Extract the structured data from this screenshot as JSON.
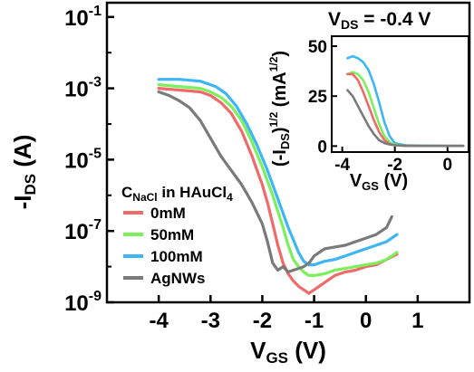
{
  "chart_data": [
    {
      "type": "line",
      "title": "",
      "xlabel_main": "V",
      "xlabel_sub": "GS",
      "xlabel_unit": " (V)",
      "ylabel_main": "-I",
      "ylabel_sub": "DS",
      "ylabel_unit": " (A)",
      "y_scale": "log",
      "xlim": [
        -5,
        2
      ],
      "ylim_exponent": [
        -9,
        -0.6
      ],
      "x_ticks": [
        -4,
        -3,
        -2,
        -1,
        0,
        1
      ],
      "x_tick_labels": [
        "-4",
        "-3",
        "-2",
        "-1",
        "0",
        "1"
      ],
      "y_ticks": [
        -9,
        -7,
        -5,
        -3,
        -1
      ],
      "y_tick_labels": [
        "10-9",
        "10-7",
        "10-5",
        "10-3",
        "10-1"
      ],
      "legend_title_main": "C",
      "legend_title_sub": "NaCl",
      "legend_title_rest": " in HAuCl",
      "legend_title_sub2": "4",
      "legend_position": "bottom-left",
      "series": [
        {
          "name": "0mM",
          "color": "#f06a6a",
          "x": [
            -4,
            -3.6,
            -3.2,
            -3.0,
            -2.8,
            -2.6,
            -2.4,
            -2.2,
            -2.0,
            -1.9,
            -1.8,
            -1.7,
            -1.6,
            -1.5,
            -1.4,
            -1.3,
            -1.2,
            -1.1,
            -1.0,
            -0.8,
            -0.6,
            -0.4,
            -0.2,
            0,
            0.2,
            0.4,
            0.6
          ],
          "log_y": [
            -3.0,
            -3.05,
            -3.1,
            -3.2,
            -3.4,
            -3.7,
            -4.2,
            -4.9,
            -5.7,
            -6.2,
            -6.8,
            -7.4,
            -7.9,
            -8.2,
            -8.4,
            -8.55,
            -8.65,
            -8.75,
            -8.65,
            -8.45,
            -8.25,
            -8.15,
            -8.1,
            -8.0,
            -7.95,
            -7.8,
            -7.65
          ]
        },
        {
          "name": "50mM",
          "color": "#7bef5c",
          "x": [
            -4,
            -3.6,
            -3.2,
            -3.0,
            -2.8,
            -2.6,
            -2.4,
            -2.2,
            -2.0,
            -1.8,
            -1.6,
            -1.5,
            -1.4,
            -1.3,
            -1.2,
            -1.1,
            -1.0,
            -0.8,
            -0.6,
            -0.4,
            -0.2,
            0,
            0.2,
            0.4,
            0.6
          ],
          "log_y": [
            -2.9,
            -2.95,
            -3.0,
            -3.1,
            -3.25,
            -3.5,
            -3.9,
            -4.5,
            -5.2,
            -6.0,
            -6.9,
            -7.4,
            -7.8,
            -8.0,
            -8.15,
            -8.25,
            -8.25,
            -8.2,
            -8.1,
            -8.05,
            -8.0,
            -7.95,
            -7.9,
            -7.8,
            -7.6
          ]
        },
        {
          "name": "100mM",
          "color": "#3eb6f5",
          "x": [
            -4,
            -3.6,
            -3.2,
            -2.9,
            -2.7,
            -2.5,
            -2.3,
            -2.1,
            -1.9,
            -1.7,
            -1.5,
            -1.3,
            -1.2,
            -1.1,
            -1.0,
            -0.8,
            -0.6,
            -0.4,
            -0.2,
            0,
            0.2,
            0.4,
            0.6
          ],
          "log_y": [
            -2.75,
            -2.75,
            -2.8,
            -2.95,
            -3.15,
            -3.5,
            -4.0,
            -4.6,
            -5.3,
            -6.1,
            -6.9,
            -7.6,
            -7.85,
            -7.95,
            -7.95,
            -7.85,
            -7.8,
            -7.7,
            -7.6,
            -7.5,
            -7.4,
            -7.3,
            -7.1
          ]
        },
        {
          "name": "AgNWs",
          "color": "#7a7a7a",
          "x": [
            -4,
            -3.8,
            -3.6,
            -3.4,
            -3.2,
            -3.0,
            -2.8,
            -2.6,
            -2.4,
            -2.2,
            -2.0,
            -1.9,
            -1.8,
            -1.7,
            -1.6,
            -1.5,
            -1.4,
            -1.3,
            -1.2,
            -1.1,
            -1.0,
            -0.8,
            -0.6,
            -0.4,
            -0.2,
            0,
            0.2,
            0.4,
            0.5
          ],
          "log_y": [
            -3.1,
            -3.2,
            -3.35,
            -3.55,
            -3.9,
            -4.4,
            -4.9,
            -5.3,
            -5.7,
            -6.2,
            -6.8,
            -7.3,
            -7.9,
            -8.1,
            -8.0,
            -8.15,
            -8.1,
            -8.05,
            -8.0,
            -7.9,
            -7.7,
            -7.5,
            -7.45,
            -7.4,
            -7.3,
            -7.2,
            -7.1,
            -6.9,
            -6.6
          ]
        }
      ]
    },
    {
      "type": "line",
      "title_main": "V",
      "title_sub": "DS",
      "title_rest": " = -0.4 V",
      "xlabel_main": "V",
      "xlabel_sub": "GS",
      "xlabel_unit": " (V)",
      "ylabel_text": "(-I",
      "ylabel_sub": "DS",
      "ylabel_mid": ")",
      "ylabel_sup": "1/2",
      "ylabel_unit": "  (mA",
      "ylabel_unit_sup": "1/2",
      "ylabel_close": ")",
      "xlim": [
        -4.4,
        0.8
      ],
      "ylim": [
        -3,
        55
      ],
      "x_ticks": [
        -4,
        -2,
        0
      ],
      "x_tick_labels": [
        "-4",
        "-2",
        "0"
      ],
      "y_ticks": [
        0,
        25,
        50
      ],
      "y_tick_labels": [
        "0",
        "25",
        "50"
      ],
      "series": [
        {
          "name": "100mM",
          "color": "#3eb6f5",
          "x": [
            -3.8,
            -3.6,
            -3.4,
            -3.2,
            -3.0,
            -2.8,
            -2.6,
            -2.4,
            -2.2,
            -2.0,
            -1.6,
            -1.0,
            0,
            0.6
          ],
          "y": [
            44,
            45,
            44,
            42,
            38,
            31,
            22,
            12,
            5,
            1.5,
            0.4,
            0.2,
            0.1,
            0.1
          ]
        },
        {
          "name": "50mM",
          "color": "#7bef5c",
          "x": [
            -3.8,
            -3.6,
            -3.4,
            -3.2,
            -3.0,
            -2.8,
            -2.6,
            -2.4,
            -2.2,
            -2.0,
            -1.6,
            -1.0,
            0,
            0.6
          ],
          "y": [
            36,
            37,
            36,
            33,
            27,
            19,
            11,
            5,
            2,
            0.7,
            0.2,
            0.1,
            0.1,
            0.1
          ]
        },
        {
          "name": "0mM",
          "color": "#f06a6a",
          "x": [
            -3.8,
            -3.6,
            -3.4,
            -3.2,
            -3.0,
            -2.8,
            -2.6,
            -2.4,
            -2.2,
            -2.0,
            -1.6,
            -1.0,
            0,
            0.6
          ],
          "y": [
            36,
            36,
            33,
            27,
            20,
            13,
            7,
            3,
            1,
            0.4,
            0.1,
            0.1,
            0.1,
            0.1
          ]
        },
        {
          "name": "AgNWs",
          "color": "#7a7a7a",
          "x": [
            -3.8,
            -3.6,
            -3.4,
            -3.2,
            -3.0,
            -2.8,
            -2.6,
            -2.4,
            -2.2,
            -2.0,
            -1.6,
            -1.0,
            0,
            0.6
          ],
          "y": [
            28,
            25,
            20,
            15,
            10,
            6,
            3,
            1.5,
            0.8,
            0.4,
            0.2,
            0.1,
            0.1,
            0.1
          ]
        }
      ]
    }
  ]
}
